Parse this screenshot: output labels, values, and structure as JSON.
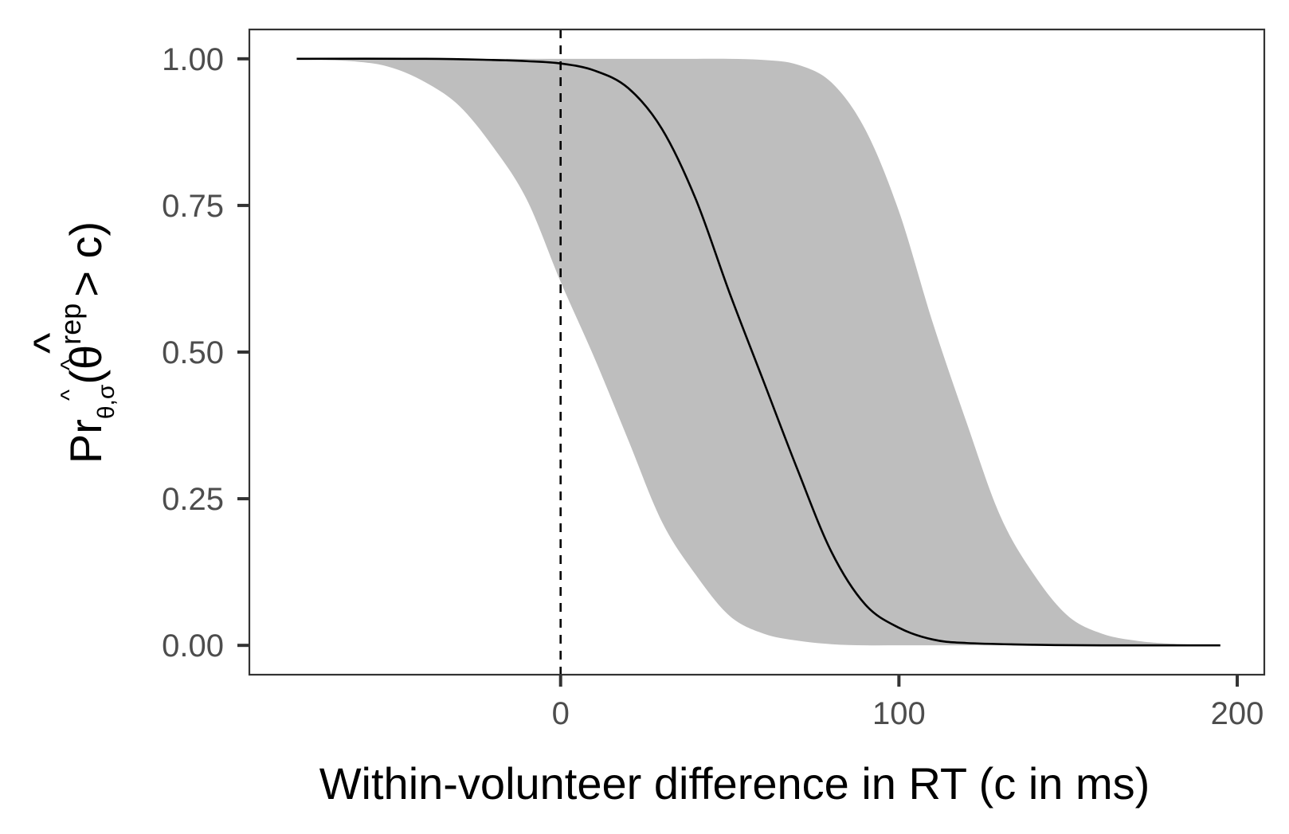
{
  "chart_data": {
    "type": "line",
    "xlabel": "Within-volunteer difference in RT (c in ms)",
    "ylabel": {
      "base": "Pr",
      "subscript": "θ,σ",
      "open": "(θ",
      "superscript": "rep",
      "relation": "> c)",
      "hat": "^"
    },
    "x_ticks": [
      0,
      100,
      200
    ],
    "y_ticks": [
      "0.00",
      "0.25",
      "0.50",
      "0.75",
      "1.00"
    ],
    "y_tick_values": [
      0,
      0.25,
      0.5,
      0.75,
      1
    ],
    "xlim": [
      -92,
      208
    ],
    "ylim": [
      -0.05,
      1.05
    ],
    "reference_line": {
      "x": 0,
      "style": "dashed"
    },
    "series": [
      {
        "role": "estimate",
        "x": [
          -78,
          -40,
          -20,
          -10,
          0,
          10,
          20,
          30,
          40,
          50,
          60,
          70,
          80,
          90,
          100,
          110,
          120,
          140,
          160,
          195
        ],
        "y": [
          1.0,
          1.0,
          0.998,
          0.996,
          0.992,
          0.98,
          0.95,
          0.88,
          0.76,
          0.6,
          0.45,
          0.3,
          0.16,
          0.07,
          0.03,
          0.01,
          0.004,
          0.001,
          0.0,
          0.0
        ]
      }
    ],
    "band": {
      "role": "interval",
      "x": [
        -78,
        -60,
        -50,
        -40,
        -30,
        -20,
        -10,
        0,
        10,
        20,
        30,
        40,
        50,
        60,
        70,
        80,
        90,
        100,
        110,
        120,
        130,
        140,
        150,
        160,
        170,
        180,
        195
      ],
      "upper": [
        1.0,
        1.0,
        1.0,
        1.0,
        1.0,
        1.0,
        1.0,
        1.0,
        1.0,
        1.0,
        1.0,
        1.0,
        1.0,
        0.998,
        0.99,
        0.96,
        0.88,
        0.74,
        0.55,
        0.38,
        0.22,
        0.12,
        0.05,
        0.02,
        0.008,
        0.003,
        0.0
      ],
      "lower": [
        1.0,
        0.995,
        0.985,
        0.96,
        0.92,
        0.85,
        0.76,
        0.62,
        0.49,
        0.35,
        0.21,
        0.12,
        0.05,
        0.02,
        0.008,
        0.002,
        0.0,
        0.0,
        0.0,
        0.0,
        0.0,
        0.0,
        0.0,
        0.0,
        0.0,
        0.0,
        0.0
      ]
    },
    "grid": false,
    "colors": {
      "band": "#bebebe",
      "line": "#000000",
      "axis": "#333333",
      "tick_text": "#4d4d4d"
    }
  }
}
